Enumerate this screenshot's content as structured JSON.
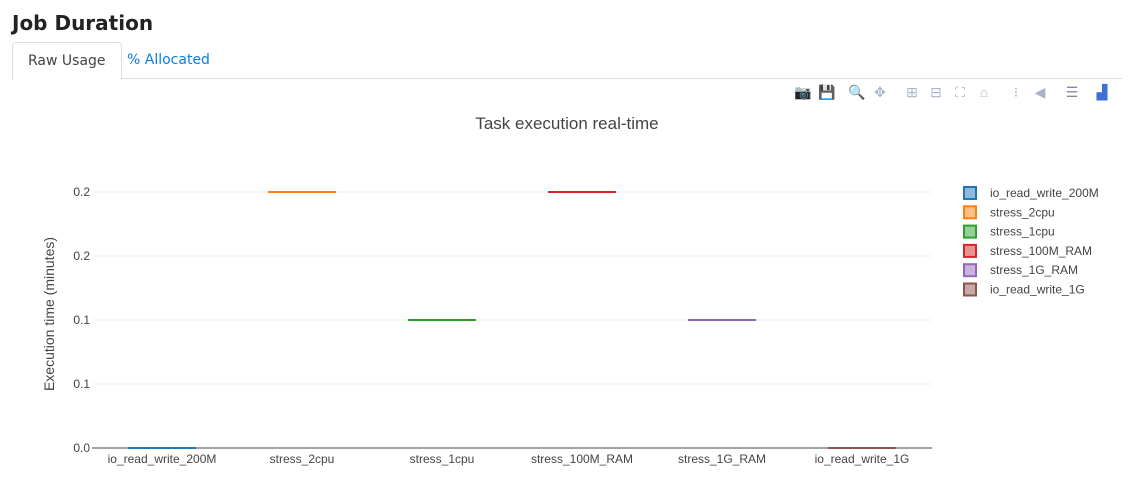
{
  "page_title": "Job Duration",
  "tabs": [
    {
      "label": "Raw Usage",
      "active": true
    },
    {
      "label": "% Allocated",
      "active": false
    }
  ],
  "toolbar": [
    {
      "icon": "camera-icon",
      "glyph": "📷"
    },
    {
      "icon": "save-icon",
      "glyph": "💾"
    },
    {
      "icon": "zoom-icon",
      "glyph": "🔍"
    },
    {
      "icon": "pan-icon",
      "glyph": "✥"
    },
    {
      "icon": "zoom-in-icon",
      "glyph": "⊞"
    },
    {
      "icon": "zoom-out-icon",
      "glyph": "⊟"
    },
    {
      "icon": "autoscale-icon",
      "glyph": "⛶"
    },
    {
      "icon": "home-icon",
      "glyph": "⌂"
    },
    {
      "icon": "spike-lines-icon",
      "glyph": "⁝"
    },
    {
      "icon": "hover-closest-icon",
      "glyph": "◀"
    },
    {
      "icon": "hover-compare-icon",
      "glyph": "☰"
    },
    {
      "icon": "plotly-logo-icon",
      "glyph": "▟"
    }
  ],
  "chart_data": {
    "type": "box",
    "title": "Task execution real-time",
    "xlabel": "",
    "ylabel": "Execution time (minutes)",
    "categories": [
      "io_read_write_200M",
      "stress_2cpu",
      "stress_1cpu",
      "stress_100M_RAM",
      "stress_1G_RAM",
      "io_read_write_1G"
    ],
    "series": [
      {
        "name": "io_read_write_200M",
        "values": [
          0
        ],
        "color": "#1f77b4"
      },
      {
        "name": "stress_2cpu",
        "values": [
          0.2
        ],
        "color": "#ff7f0e"
      },
      {
        "name": "stress_1cpu",
        "values": [
          0.1
        ],
        "color": "#2ca02c"
      },
      {
        "name": "stress_100M_RAM",
        "values": [
          0.2
        ],
        "color": "#d62728"
      },
      {
        "name": "stress_1G_RAM",
        "values": [
          0.1
        ],
        "color": "#9467bd"
      },
      {
        "name": "io_read_write_1G",
        "values": [
          0
        ],
        "color": "#8c564b"
      }
    ],
    "yticks": [
      0,
      0.05,
      0.1,
      0.15,
      0.2
    ],
    "ytick_labels": [
      "0.0",
      "0.1",
      "0.1",
      "0.2",
      "0.2"
    ],
    "ylim": [
      0,
      0.2
    ],
    "grid": true,
    "legend": "right"
  }
}
